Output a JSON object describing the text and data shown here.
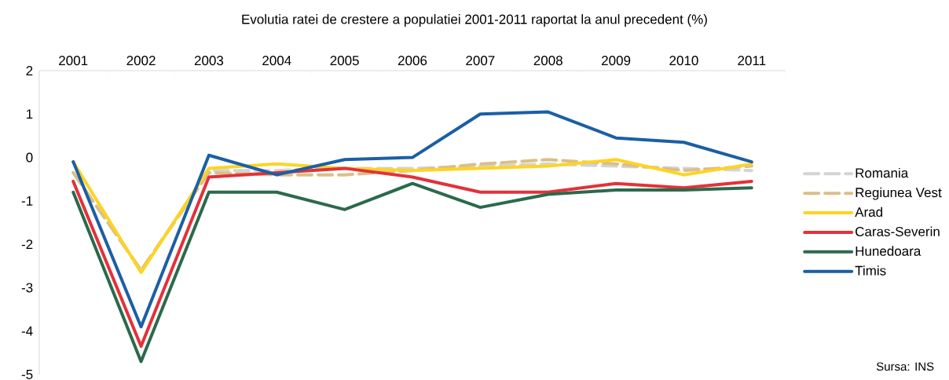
{
  "chart_data": {
    "type": "line",
    "title": "Evolutia ratei de crestere a populatiei  2001-2011 raportat la anul precedent (%)",
    "categories": [
      "2001",
      "2002",
      "2003",
      "2004",
      "2005",
      "2006",
      "2007",
      "2008",
      "2009",
      "2010",
      "2011"
    ],
    "series": [
      {
        "name": "Romania",
        "color": "#d3d4d8",
        "line_style": "dashed",
        "values": [
          -0.35,
          -2.6,
          -0.3,
          -0.3,
          -0.25,
          -0.25,
          -0.2,
          -0.15,
          -0.2,
          -0.25,
          -0.3
        ]
      },
      {
        "name": "Regiunea Vest",
        "color": "#dcbf85",
        "line_style": "dashed",
        "values": [
          -0.35,
          -2.6,
          -0.35,
          -0.4,
          -0.4,
          -0.3,
          -0.15,
          -0.05,
          -0.15,
          -0.3,
          -0.2
        ]
      },
      {
        "name": "Arad",
        "color": "#fcd424",
        "values": [
          -0.1,
          -2.65,
          -0.25,
          -0.15,
          -0.25,
          -0.3,
          -0.25,
          -0.2,
          -0.05,
          -0.4,
          -0.15
        ]
      },
      {
        "name": "Caras-Severin",
        "color": "#e3313a",
        "values": [
          -0.55,
          -4.35,
          -0.45,
          -0.35,
          -0.25,
          -0.45,
          -0.8,
          -0.8,
          -0.6,
          -0.7,
          -0.55
        ]
      },
      {
        "name": "Hunedoara",
        "color": "#2b6a4c",
        "values": [
          -0.8,
          -4.7,
          -0.8,
          -0.8,
          -1.2,
          -0.6,
          -1.15,
          -0.85,
          -0.75,
          -0.75,
          -0.7
        ]
      },
      {
        "name": "Timis",
        "color": "#1b5fa5",
        "values": [
          -0.1,
          -3.9,
          0.05,
          -0.4,
          -0.05,
          0.0,
          1.0,
          1.05,
          0.45,
          0.35,
          -0.1
        ]
      }
    ],
    "ylim": [
      -5,
      2
    ],
    "yticks": [
      -5,
      -4,
      -3,
      -2,
      -1,
      0,
      1,
      2
    ],
    "legend": "right",
    "grid": false,
    "annotations": [
      "Sursa: INS"
    ]
  }
}
